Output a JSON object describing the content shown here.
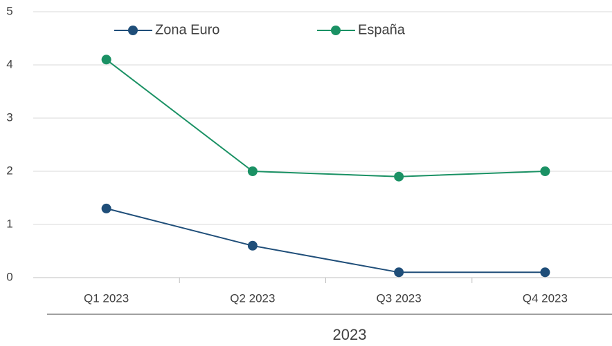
{
  "chart_data": {
    "type": "line",
    "categories": [
      "Q1 2023",
      "Q2 2023",
      "Q3 2023",
      "Q4 2023"
    ],
    "group_label": "2023",
    "series": [
      {
        "name": "Zona Euro",
        "color": "#1f4e79",
        "values": [
          1.3,
          0.6,
          0.1,
          0.1
        ]
      },
      {
        "name": "España",
        "color": "#1a9164",
        "values": [
          4.1,
          2.0,
          1.9,
          2.0
        ]
      }
    ],
    "ylim": [
      0,
      5
    ],
    "yticks": [
      0,
      1,
      2,
      3,
      4,
      5
    ],
    "grid": true,
    "legend": "top"
  }
}
